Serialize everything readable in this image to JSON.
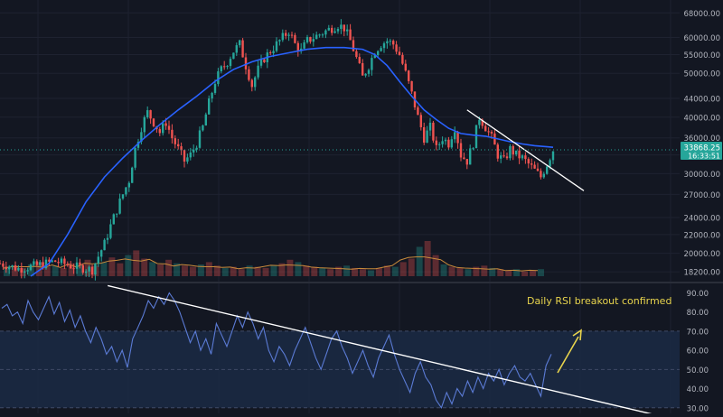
{
  "chart_data": [
    {
      "type": "candlestick",
      "panel": "price",
      "y_scale": "log",
      "ylim": [
        17800,
        70000
      ],
      "y_ticks": [
        "68000.00",
        "60000.00",
        "55000.00",
        "50000.00",
        "44000.00",
        "40000.00",
        "36000.00",
        "33000.00",
        "30000.00",
        "27000.00",
        "24000.00",
        "22000.00",
        "20000.00",
        "18200.00"
      ],
      "last_price": {
        "value": "33868.25",
        "countdown": "16:33:51"
      },
      "colors": {
        "up": "#26a69a",
        "down": "#ef5350",
        "ma": "#2962ff",
        "trendline": "#ffffff",
        "background": "#131722"
      },
      "price_path": [
        [
          0,
          19000
        ],
        [
          6,
          18500
        ],
        [
          12,
          18800
        ],
        [
          18,
          19200
        ],
        [
          24,
          18700
        ],
        [
          30,
          18400
        ],
        [
          34,
          21000
        ],
        [
          38,
          25000
        ],
        [
          42,
          29000
        ],
        [
          44,
          34000
        ],
        [
          46,
          38000
        ],
        [
          48,
          41000
        ],
        [
          50,
          39000
        ],
        [
          52,
          37000
        ],
        [
          54,
          39000
        ],
        [
          56,
          36000
        ],
        [
          58,
          34000
        ],
        [
          60,
          32000
        ],
        [
          62,
          33000
        ],
        [
          64,
          35000
        ],
        [
          66,
          38000
        ],
        [
          68,
          43000
        ],
        [
          70,
          48000
        ],
        [
          72,
          51000
        ],
        [
          74,
          53000
        ],
        [
          76,
          56000
        ],
        [
          78,
          58000
        ],
        [
          80,
          52000
        ],
        [
          82,
          47000
        ],
        [
          84,
          51000
        ],
        [
          86,
          54000
        ],
        [
          88,
          56000
        ],
        [
          90,
          58000
        ],
        [
          92,
          60000
        ],
        [
          94,
          62000
        ],
        [
          96,
          58000
        ],
        [
          98,
          56000
        ],
        [
          100,
          59000
        ],
        [
          102,
          60000
        ],
        [
          104,
          61000
        ],
        [
          106,
          62000
        ],
        [
          108,
          63000
        ],
        [
          110,
          64000
        ],
        [
          112,
          63000
        ],
        [
          114,
          59000
        ],
        [
          116,
          54000
        ],
        [
          118,
          49000
        ],
        [
          120,
          52000
        ],
        [
          122,
          56000
        ],
        [
          124,
          58000
        ],
        [
          126,
          59000
        ],
        [
          128,
          58000
        ],
        [
          130,
          55000
        ],
        [
          132,
          50000
        ],
        [
          134,
          45000
        ],
        [
          136,
          40000
        ],
        [
          138,
          36000
        ],
        [
          140,
          38000
        ],
        [
          142,
          34000
        ],
        [
          144,
          36000
        ],
        [
          146,
          35000
        ],
        [
          148,
          38000
        ],
        [
          150,
          33000
        ],
        [
          152,
          32000
        ],
        [
          154,
          35000
        ],
        [
          156,
          40000
        ],
        [
          158,
          38000
        ],
        [
          160,
          36000
        ],
        [
          162,
          33000
        ],
        [
          164,
          32000
        ],
        [
          166,
          34000
        ],
        [
          168,
          33000
        ],
        [
          170,
          32500
        ],
        [
          172,
          31500
        ],
        [
          174,
          30500
        ],
        [
          176,
          29500
        ],
        [
          178,
          31500
        ],
        [
          180,
          33868
        ]
      ],
      "ma_path": [
        [
          10,
          17800
        ],
        [
          16,
          19000
        ],
        [
          22,
          22000
        ],
        [
          28,
          26000
        ],
        [
          34,
          29500
        ],
        [
          40,
          32500
        ],
        [
          46,
          35500
        ],
        [
          52,
          38500
        ],
        [
          58,
          41500
        ],
        [
          64,
          44500
        ],
        [
          70,
          48000
        ],
        [
          76,
          51000
        ],
        [
          82,
          53000
        ],
        [
          88,
          54500
        ],
        [
          94,
          55500
        ],
        [
          100,
          56500
        ],
        [
          106,
          57000
        ],
        [
          112,
          57000
        ],
        [
          118,
          56500
        ],
        [
          122,
          55000
        ],
        [
          126,
          52000
        ],
        [
          130,
          48000
        ],
        [
          134,
          44500
        ],
        [
          138,
          41500
        ],
        [
          142,
          39500
        ],
        [
          146,
          37800
        ],
        [
          150,
          36800
        ],
        [
          154,
          36500
        ],
        [
          158,
          36300
        ],
        [
          162,
          35800
        ],
        [
          166,
          35300
        ],
        [
          170,
          34900
        ],
        [
          174,
          34600
        ],
        [
          178,
          34400
        ],
        [
          180,
          34300
        ]
      ],
      "volume_profile": [
        8,
        9,
        7,
        10,
        12,
        8,
        9,
        7,
        11,
        10,
        14,
        9,
        12,
        16,
        11,
        18,
        22,
        15,
        12,
        10,
        14,
        11,
        9,
        8,
        10,
        12,
        9,
        7,
        8,
        6,
        9,
        8,
        7,
        9,
        11,
        14,
        12,
        9,
        8,
        7,
        6,
        8,
        9,
        7,
        6,
        5,
        7,
        9,
        8,
        12,
        15,
        25,
        30,
        18,
        10,
        8,
        7,
        6,
        8,
        9,
        7,
        6,
        5,
        6,
        4,
        5,
        6
      ],
      "trendline": {
        "from": [
          152,
          41500
        ],
        "to": [
          190,
          27500
        ]
      }
    },
    {
      "type": "line",
      "panel": "rsi",
      "ylim": [
        28,
        94
      ],
      "y_ticks": [
        "90.00",
        "80.00",
        "70.00",
        "60.00",
        "50.00",
        "40.00",
        "30.00"
      ],
      "overbought": 70,
      "oversold": 30,
      "colors": {
        "line": "#5b7bd5",
        "band": "#1b2a44",
        "trendline": "#ffffff"
      },
      "rsi_values": [
        82,
        84,
        78,
        80,
        74,
        86,
        80,
        76,
        82,
        88,
        79,
        85,
        75,
        81,
        72,
        78,
        70,
        64,
        72,
        66,
        58,
        62,
        54,
        60,
        51,
        66,
        72,
        78,
        86,
        82,
        88,
        84,
        90,
        86,
        80,
        72,
        64,
        70,
        60,
        66,
        58,
        74,
        68,
        62,
        70,
        78,
        72,
        80,
        74,
        66,
        72,
        60,
        54,
        62,
        58,
        52,
        60,
        66,
        72,
        64,
        56,
        50,
        58,
        66,
        70,
        62,
        56,
        48,
        54,
        60,
        52,
        46,
        56,
        62,
        68,
        58,
        50,
        44,
        38,
        48,
        54,
        46,
        42,
        34,
        30,
        38,
        32,
        40,
        36,
        44,
        38,
        46,
        40,
        48,
        44,
        50,
        42,
        48,
        52,
        46,
        44,
        48,
        42,
        36,
        52,
        58
      ],
      "trendline": {
        "from": [
          38,
          90
        ],
        "to": [
          190,
          30
        ]
      },
      "annotation": "Daily RSI breakout confirmed"
    }
  ]
}
